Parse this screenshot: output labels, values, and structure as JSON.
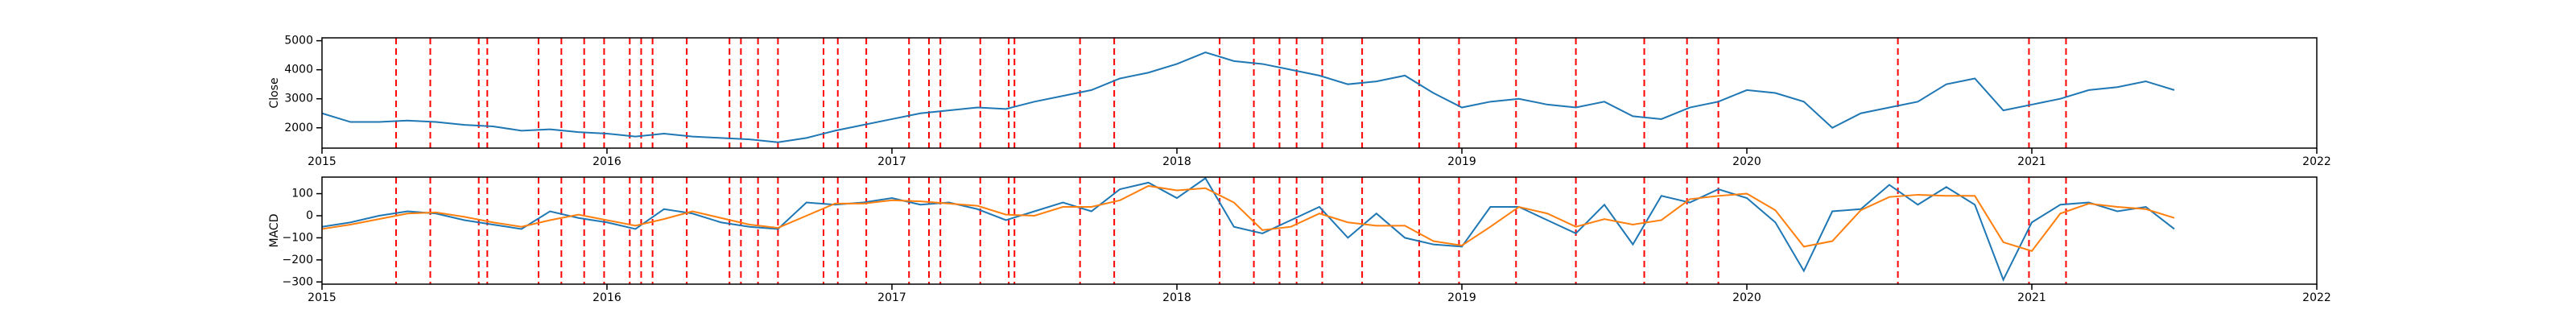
{
  "chart_data": [
    {
      "type": "line",
      "y_label": "Close",
      "x": [
        2015.0,
        2015.1,
        2015.2,
        2015.3,
        2015.4,
        2015.5,
        2015.6,
        2015.7,
        2015.8,
        2015.9,
        2016.0,
        2016.1,
        2016.2,
        2016.3,
        2016.4,
        2016.5,
        2016.6,
        2016.7,
        2016.8,
        2016.9,
        2017.0,
        2017.1,
        2017.2,
        2017.3,
        2017.4,
        2017.5,
        2017.6,
        2017.7,
        2017.8,
        2017.9,
        2018.0,
        2018.1,
        2018.2,
        2018.3,
        2018.4,
        2018.5,
        2018.6,
        2018.7,
        2018.8,
        2018.9,
        2019.0,
        2019.1,
        2019.2,
        2019.3,
        2019.4,
        2019.5,
        2019.6,
        2019.7,
        2019.8,
        2019.9,
        2020.0,
        2020.1,
        2020.2,
        2020.3,
        2020.4,
        2020.5,
        2020.6,
        2020.7,
        2020.8,
        2020.9,
        2021.0,
        2021.1,
        2021.2,
        2021.3,
        2021.4,
        2021.5
      ],
      "series": [
        {
          "color": "#1f77b4",
          "values": [
            2500,
            2200,
            2200,
            2250,
            2200,
            2100,
            2050,
            1900,
            1950,
            1850,
            1800,
            1700,
            1800,
            1700,
            1650,
            1600,
            1500,
            1650,
            1900,
            2100,
            2300,
            2500,
            2600,
            2700,
            2650,
            2900,
            3100,
            3300,
            3700,
            3900,
            4200,
            4600,
            4300,
            4200,
            4000,
            3800,
            3500,
            3600,
            3800,
            3200,
            2700,
            2900,
            3000,
            2800,
            2700,
            2900,
            2400,
            2300,
            2700,
            2900,
            3300,
            3200,
            2900,
            2000,
            2500,
            2700,
            2900,
            3500,
            3700,
            2600,
            2800,
            3000,
            3300,
            3400,
            3600,
            3300
          ]
        }
      ],
      "vlines": [
        2015.26,
        2015.38,
        2015.55,
        2015.58,
        2015.76,
        2015.84,
        2015.92,
        2015.99,
        2016.08,
        2016.12,
        2016.16,
        2016.28,
        2016.43,
        2016.47,
        2016.53,
        2016.6,
        2016.76,
        2016.81,
        2016.91,
        2017.06,
        2017.13,
        2017.17,
        2017.31,
        2017.41,
        2017.43,
        2017.66,
        2017.78,
        2018.15,
        2018.27,
        2018.36,
        2018.42,
        2018.51,
        2018.65,
        2018.85,
        2018.99,
        2019.19,
        2019.4,
        2019.64,
        2019.79,
        2019.9,
        2020.53,
        2020.99,
        2021.12
      ],
      "vline_color": "#ff0000",
      "xlim": [
        2015,
        2022
      ],
      "xticks": [
        2015,
        2016,
        2017,
        2018,
        2019,
        2020,
        2021,
        2022
      ],
      "ylim": [
        1300,
        5100
      ],
      "yticks": [
        2000,
        3000,
        4000,
        5000
      ]
    },
    {
      "type": "line",
      "y_label": "MACD",
      "x": [
        2015.0,
        2015.1,
        2015.2,
        2015.3,
        2015.4,
        2015.5,
        2015.6,
        2015.7,
        2015.8,
        2015.9,
        2016.0,
        2016.1,
        2016.2,
        2016.3,
        2016.4,
        2016.5,
        2016.6,
        2016.7,
        2016.8,
        2016.9,
        2017.0,
        2017.1,
        2017.2,
        2017.3,
        2017.4,
        2017.5,
        2017.6,
        2017.7,
        2017.8,
        2017.9,
        2018.0,
        2018.1,
        2018.2,
        2018.3,
        2018.4,
        2018.5,
        2018.6,
        2018.7,
        2018.8,
        2018.9,
        2019.0,
        2019.1,
        2019.2,
        2019.3,
        2019.4,
        2019.5,
        2019.6,
        2019.7,
        2019.8,
        2019.9,
        2020.0,
        2020.1,
        2020.2,
        2020.3,
        2020.4,
        2020.5,
        2020.6,
        2020.7,
        2020.8,
        2020.9,
        2021.0,
        2021.1,
        2021.2,
        2021.3,
        2021.4,
        2021.5
      ],
      "series": [
        {
          "color": "#1f77b4",
          "values": [
            -50,
            -30,
            0,
            20,
            10,
            -20,
            -40,
            -60,
            20,
            -10,
            -30,
            -60,
            30,
            10,
            -30,
            -50,
            -60,
            60,
            50,
            60,
            80,
            50,
            60,
            30,
            -20,
            20,
            60,
            20,
            120,
            150,
            80,
            170,
            -50,
            -80,
            -20,
            40,
            -100,
            10,
            -100,
            -130,
            -140,
            40,
            40,
            -20,
            -80,
            50,
            -130,
            90,
            60,
            120,
            80,
            -30,
            -250,
            20,
            30,
            140,
            50,
            130,
            50,
            -290,
            -30,
            50,
            60,
            20,
            40,
            -60
          ]
        },
        {
          "color": "#ff7f0e",
          "values": [
            -60,
            -40,
            -15,
            10,
            15,
            -5,
            -30,
            -50,
            -20,
            5,
            -20,
            -45,
            -15,
            20,
            -10,
            -40,
            -55,
            0,
            55,
            55,
            70,
            65,
            55,
            45,
            5,
            0,
            40,
            40,
            70,
            135,
            115,
            125,
            60,
            -65,
            -50,
            10,
            -30,
            -45,
            -45,
            -115,
            -135,
            -50,
            40,
            10,
            -50,
            -15,
            -40,
            -20,
            75,
            90,
            100,
            25,
            -140,
            -115,
            25,
            85,
            95,
            90,
            90,
            -120,
            -160,
            10,
            55,
            40,
            30,
            -10
          ]
        }
      ],
      "vlines": [
        2015.26,
        2015.38,
        2015.55,
        2015.58,
        2015.76,
        2015.84,
        2015.92,
        2015.99,
        2016.08,
        2016.12,
        2016.16,
        2016.28,
        2016.43,
        2016.47,
        2016.53,
        2016.6,
        2016.76,
        2016.81,
        2016.91,
        2017.06,
        2017.13,
        2017.17,
        2017.31,
        2017.41,
        2017.43,
        2017.66,
        2017.78,
        2018.15,
        2018.27,
        2018.36,
        2018.42,
        2018.51,
        2018.65,
        2018.85,
        2018.99,
        2019.19,
        2019.4,
        2019.64,
        2019.79,
        2019.9,
        2020.53,
        2020.99,
        2021.12
      ],
      "vline_color": "#ff0000",
      "xlim": [
        2015,
        2022
      ],
      "xticks": [
        2015,
        2016,
        2017,
        2018,
        2019,
        2020,
        2021,
        2022
      ],
      "ylim": [
        -310,
        175
      ],
      "yticks": [
        {
          "value": -300,
          "label": "−300"
        },
        {
          "value": -200,
          "label": "−200"
        },
        {
          "value": -100,
          "label": "−100"
        },
        0,
        100
      ]
    }
  ]
}
